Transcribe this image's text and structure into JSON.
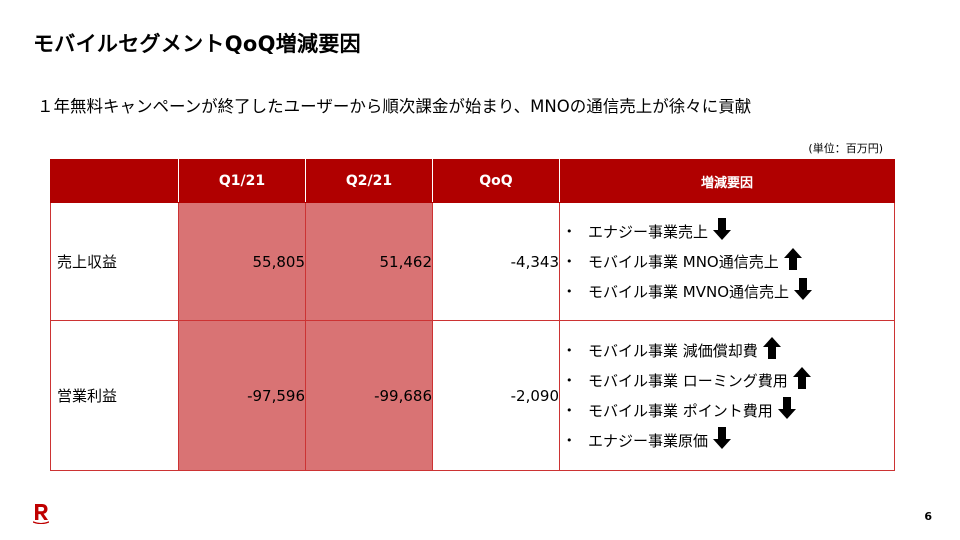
{
  "slide": {
    "title": "モバイルセグメントQoQ増減要因",
    "subtitle": "１年無料キャンペーンが終了したユーザーから順次課金が始まり、MNOの通信売上が徐々に貢献",
    "unit_note": "(単位：百万円)",
    "page_number": "6"
  },
  "table": {
    "headers": [
      "",
      "Q1/21",
      "Q2/21",
      "QoQ",
      "増減要因"
    ],
    "rows": [
      {
        "label": "売上収益",
        "q1": "55,805",
        "q2": "51,462",
        "qoq": "-4,343",
        "factors": [
          {
            "text": "エナジー事業売上",
            "direction": "down"
          },
          {
            "text": "モバイル事業 MNO通信売上",
            "direction": "up"
          },
          {
            "text": "モバイル事業 MVNO通信売上",
            "direction": "down"
          }
        ]
      },
      {
        "label": "営業利益",
        "q1": "-97,596",
        "q2": "-99,686",
        "qoq": "-2,090",
        "factors": [
          {
            "text": "モバイル事業 減価償却費",
            "direction": "up"
          },
          {
            "text": "モバイル事業 ローミング費用",
            "direction": "up"
          },
          {
            "text": "モバイル事業 ポイント費用",
            "direction": "down"
          },
          {
            "text": "エナジー事業原価",
            "direction": "down"
          }
        ]
      }
    ]
  },
  "colors": {
    "header_bg": "#b00000",
    "shaded_cell": "#d97374",
    "border": "#cc3333",
    "logo": "#bf0000"
  },
  "icons": {
    "up_arrow": "arrow-up-icon",
    "down_arrow": "arrow-down-icon",
    "logo": "rakuten-r-logo"
  }
}
